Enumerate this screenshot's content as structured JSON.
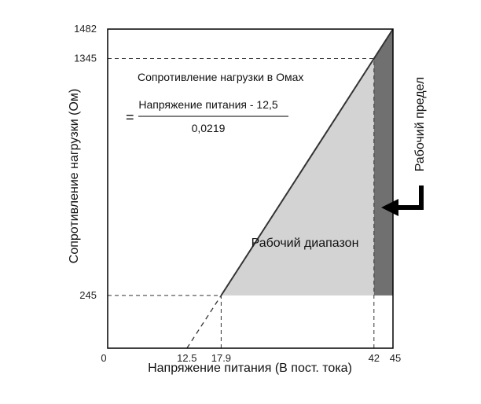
{
  "chart_data": {
    "type": "area",
    "x_ticks": [
      "0",
      "12.5",
      "17.9",
      "42",
      "45"
    ],
    "y_ticks": [
      "245",
      "1345",
      "1482"
    ],
    "xlabel": "Напряжение питания (В пост. тока)",
    "ylabel": "Сопротивление нагрузки (Ом)",
    "xlim": [
      0,
      45
    ],
    "ylim": [
      0,
      1482
    ],
    "series": [
      {
        "values": [
          [
            12.5,
            0
          ],
          [
            17.9,
            245
          ],
          [
            42,
            1345
          ],
          [
            45,
            1482
          ]
        ]
      }
    ],
    "regions": [
      {
        "label": "Рабочий диапазон",
        "polygon": [
          [
            17.9,
            245
          ],
          [
            42,
            1345
          ],
          [
            42,
            245
          ]
        ],
        "color": "#d3d3d3"
      },
      {
        "label": "Рабочий предел",
        "polygon": [
          [
            42,
            245
          ],
          [
            42,
            1345
          ],
          [
            45,
            1482
          ],
          [
            45,
            245
          ]
        ],
        "color": "#707070"
      }
    ],
    "formula": {
      "line1": "Сопротивление нагрузки в Омах",
      "equals": "=",
      "numerator": "Напряжение питания - 12,5",
      "denominator": "0,0219"
    },
    "grid": false,
    "colors": {
      "line": "#333333",
      "axis": "#000000"
    }
  }
}
